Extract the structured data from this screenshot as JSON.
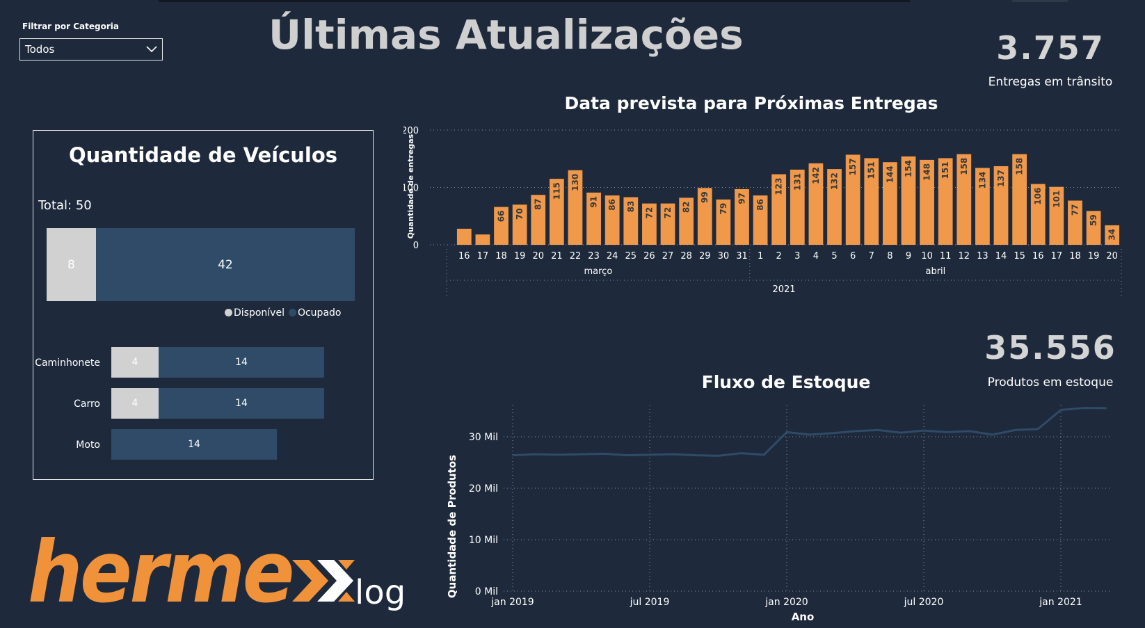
{
  "filter": {
    "label": "Filtrar por Categoria",
    "selected": "Todos"
  },
  "title": "Últimas Atualizações",
  "kpi_transit": {
    "value": "3.757",
    "label": "Entregas em trânsito"
  },
  "kpi_stock": {
    "value": "35.556",
    "label": "Produtos em estoque"
  },
  "vehicles": {
    "title": "Quantidade de Veículos",
    "total": "Total: 50",
    "legend": [
      "Disponível",
      "Ocupado"
    ],
    "colors": {
      "disponivel": "#d1d1d1",
      "ocupado": "#2f4b67"
    }
  },
  "logo": {
    "brand": "hermex",
    "suffix": "log",
    "color": "#f0923a"
  },
  "chart_data": [
    {
      "type": "bar",
      "title": "Quantidade de Veículos",
      "orientation": "horizontal",
      "stacked": true,
      "categories": [
        "Total",
        "Caminhonete",
        "Carro",
        "Moto"
      ],
      "series": [
        {
          "name": "Disponível",
          "values": [
            8,
            4,
            4,
            0
          ]
        },
        {
          "name": "Ocupado",
          "values": [
            42,
            14,
            14,
            14
          ]
        }
      ]
    },
    {
      "type": "bar",
      "title": "Data prevista para Próximas Entregas",
      "ylabel": "Quantidade de entregas",
      "ylim": [
        0,
        200
      ],
      "yticks": [
        "0",
        "100",
        "200"
      ],
      "color": "#f0994a",
      "categories": [
        "16",
        "17",
        "18",
        "19",
        "20",
        "21",
        "22",
        "23",
        "24",
        "25",
        "26",
        "27",
        "28",
        "29",
        "30",
        "31",
        "1",
        "2",
        "3",
        "4",
        "5",
        "6",
        "7",
        "8",
        "9",
        "10",
        "11",
        "12",
        "13",
        "14",
        "15",
        "16",
        "17",
        "18",
        "19",
        "20"
      ],
      "month_labels": [
        "março",
        "abril"
      ],
      "year_label": "2021",
      "values": [
        28,
        18,
        66,
        70,
        87,
        115,
        130,
        91,
        86,
        83,
        72,
        72,
        82,
        99,
        79,
        97,
        86,
        123,
        131,
        142,
        132,
        157,
        151,
        144,
        154,
        148,
        151,
        158,
        134,
        137,
        158,
        106,
        101,
        77,
        59,
        34
      ],
      "labeled": [
        false,
        false,
        true,
        true,
        true,
        true,
        true,
        true,
        true,
        true,
        true,
        true,
        true,
        true,
        true,
        true,
        true,
        true,
        true,
        true,
        true,
        true,
        true,
        true,
        true,
        true,
        true,
        true,
        true,
        true,
        true,
        true,
        true,
        true,
        true,
        true
      ],
      "grid": true
    },
    {
      "type": "line",
      "title": "Fluxo de Estoque",
      "xlabel": "Ano",
      "ylabel": "Quantidade de Produtos",
      "yticks": [
        "0 Mil",
        "10 Mil",
        "20 Mil",
        "30 Mil"
      ],
      "ylim": [
        0,
        35000
      ],
      "xticks": [
        "jan 2019",
        "jul 2019",
        "jan 2020",
        "jul 2020",
        "jan 2021"
      ],
      "x": [
        "2019-01",
        "2019-02",
        "2019-03",
        "2019-04",
        "2019-05",
        "2019-06",
        "2019-07",
        "2019-08",
        "2019-09",
        "2019-10",
        "2019-11",
        "2019-12",
        "2020-01",
        "2020-02",
        "2020-03",
        "2020-04",
        "2020-05",
        "2020-06",
        "2020-07",
        "2020-08",
        "2020-09",
        "2020-10",
        "2020-11",
        "2020-12",
        "2021-01",
        "2021-02",
        "2021-03"
      ],
      "values": [
        26400,
        26600,
        26500,
        26600,
        26700,
        26400,
        26500,
        26600,
        26400,
        26300,
        26800,
        26500,
        30900,
        30400,
        30700,
        31100,
        31300,
        30800,
        31200,
        30900,
        31100,
        30400,
        31300,
        31500,
        35200,
        35600,
        35556
      ],
      "color": "#2f4b67",
      "grid": true
    }
  ]
}
